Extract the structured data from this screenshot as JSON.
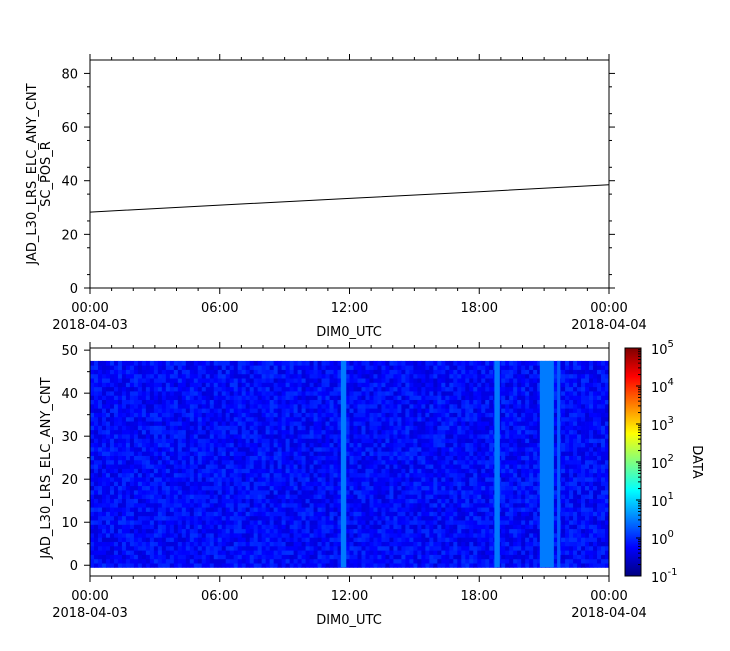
{
  "chart_data": [
    {
      "type": "line",
      "ylabel_lines": [
        "JAD_L30_LRS_ELC_ANY_CNT",
        "SC_POS_R"
      ],
      "xlabel": "DIM0_UTC",
      "ylim": [
        0,
        85
      ],
      "yticks": [
        0,
        20,
        40,
        60,
        80
      ],
      "xticks": [
        {
          "hour": 0,
          "label": "00:00",
          "sublabel": "2018-04-03"
        },
        {
          "hour": 6,
          "label": "06:00",
          "sublabel": ""
        },
        {
          "hour": 12,
          "label": "12:00",
          "sublabel": ""
        },
        {
          "hour": 18,
          "label": "18:00",
          "sublabel": ""
        },
        {
          "hour": 24,
          "label": "00:00",
          "sublabel": "2018-04-04"
        }
      ],
      "x_hours": [
        0,
        6,
        12,
        18,
        24
      ],
      "values": [
        28.3,
        30.9,
        33.4,
        35.9,
        38.5
      ]
    },
    {
      "type": "heatmap",
      "ylabel": "JAD_L30_LRS_ELC_ANY_CNT",
      "xlabel": "DIM0_UTC",
      "ylim": [
        -2.5,
        50.5
      ],
      "yticks": [
        0,
        10,
        20,
        30,
        40,
        50
      ],
      "bins_y": [
        0,
        47
      ],
      "xticks": [
        {
          "hour": 0,
          "label": "00:00",
          "sublabel": "2018-04-03"
        },
        {
          "hour": 6,
          "label": "06:00",
          "sublabel": ""
        },
        {
          "hour": 12,
          "label": "12:00",
          "sublabel": ""
        },
        {
          "hour": 18,
          "label": "18:00",
          "sublabel": ""
        },
        {
          "hour": 24,
          "label": "00:00",
          "sublabel": "2018-04-04"
        }
      ],
      "background_value": 0.6,
      "bright_bands": [
        {
          "start_hour": 11.6,
          "end_hour": 11.85,
          "value": 3
        },
        {
          "start_hour": 18.7,
          "end_hour": 18.95,
          "value": 3
        },
        {
          "start_hour": 20.8,
          "end_hour": 21.45,
          "value": 3
        },
        {
          "start_hour": 21.6,
          "end_hour": 21.75,
          "value": 2
        }
      ],
      "colorbar": {
        "label": "DATA",
        "scale": "log",
        "range": [
          0.1,
          100000
        ],
        "tick_exponents": [
          "-1",
          "0",
          "1",
          "2",
          "3",
          "4",
          "5"
        ],
        "tick_base": "10",
        "colormap": [
          "#00007f",
          "#0000ff",
          "#007fff",
          "#00ffff",
          "#7fff7f",
          "#ffff00",
          "#ff7f00",
          "#ff0000",
          "#7f0000"
        ]
      }
    }
  ]
}
